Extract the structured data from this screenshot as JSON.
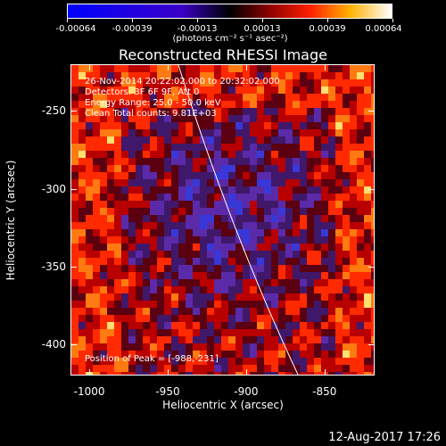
{
  "colorbar": {
    "tick_labels": [
      "-0.00064",
      "-0.00039",
      "-0.00013",
      "0.00013",
      "0.00039",
      "0.00064"
    ],
    "units": "(photons cm⁻² s⁻¹ asec⁻²)"
  },
  "title": "Reconstructed RHESSI Image",
  "info": {
    "time": "26-Nov-2014 20:22:02.000 to 20:32:02.000",
    "detectors": "Detectors: 3F 6F 9F, Att 0",
    "energy": "Energy Range: 25.0 - 50.0 keV",
    "clean": "Clean     Total counts: 9.81E+03",
    "peak": "Position of Peak = [-988,-231]"
  },
  "axes": {
    "xlabel": "Heliocentric X (arcsec)",
    "ylabel": "Heliocentric Y (arcsec)",
    "xticks": [
      "-1000",
      "-950",
      "-900",
      "-850"
    ],
    "yticks": [
      "-250",
      "-300",
      "-350",
      "-400"
    ],
    "xrange": [
      -1012,
      -818
    ],
    "yrange": [
      -220,
      -420
    ]
  },
  "footer": "12-Aug-2017 17:26",
  "colors": {
    "background": "#000000",
    "limb": "#ffffff"
  }
}
